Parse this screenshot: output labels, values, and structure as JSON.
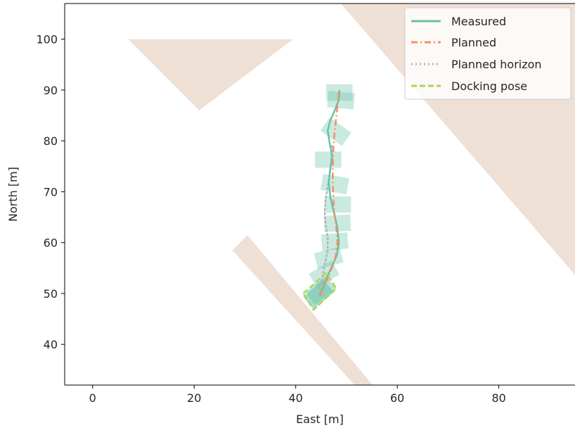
{
  "chart_data": {
    "type": "line",
    "xlabel": "East [m]",
    "ylabel": "North [m]",
    "xlim": [
      -5.5,
      95
    ],
    "ylim": [
      32,
      107
    ],
    "xticks": [
      0,
      20,
      40,
      60,
      80
    ],
    "yticks": [
      40,
      50,
      60,
      70,
      80,
      90,
      100
    ],
    "grid": false,
    "legend_position": "top-right",
    "colors": {
      "obstacle": "#efe0d6",
      "measured": "#66c2a5",
      "planned": "#fc8d62",
      "horizon": "#b3b3b3",
      "docking": "#a6d854",
      "footprint": "#66c2a5"
    },
    "obstacles": [
      {
        "name": "triangle",
        "points": [
          [
            7,
            100
          ],
          [
            39.5,
            100
          ],
          [
            21,
            86
          ]
        ]
      },
      {
        "name": "strip",
        "points": [
          [
            27.5,
            58.5
          ],
          [
            30.5,
            61.5
          ],
          [
            56,
            31
          ],
          [
            52.5,
            31
          ]
        ]
      },
      {
        "name": "diagonal-region",
        "points": [
          [
            48,
            108
          ],
          [
            96,
            108
          ],
          [
            96,
            52.5
          ]
        ]
      }
    ],
    "series": [
      {
        "name": "Measured",
        "style": "solid",
        "x": [
          44.7,
          45.5,
          46.3,
          47.2,
          48.1,
          48.5,
          48.2,
          47.5,
          46.8,
          46.5,
          46.8,
          47.2,
          46.7,
          46.3,
          46.8,
          47.7,
          48.4,
          48.6,
          48.6
        ],
        "y": [
          49.5,
          51.5,
          53.5,
          55.5,
          57.5,
          60.0,
          63.0,
          66.0,
          69.0,
          72.0,
          74.5,
          77.0,
          79.5,
          82.0,
          84.0,
          86.0,
          87.8,
          89.2,
          90.0
        ]
      },
      {
        "name": "Planned",
        "style": "dashdot",
        "x": [
          44.8,
          45.6,
          46.5,
          47.3,
          47.9,
          48.2,
          48.0,
          47.6,
          47.4,
          47.3,
          47.3,
          47.4,
          47.6,
          47.9,
          48.2,
          48.4,
          48.5
        ],
        "y": [
          49.5,
          51.5,
          53.5,
          55.5,
          57.5,
          60.0,
          63.0,
          66.0,
          69.0,
          72.0,
          75.0,
          78.0,
          81.0,
          84.0,
          86.5,
          88.5,
          90.0
        ]
      },
      {
        "name": "Planned horizon",
        "style": "dotted",
        "x": [
          44.5,
          45.2,
          45.8,
          46.3,
          46.3,
          45.9,
          45.7,
          45.9,
          46.3,
          46.7,
          47.0,
          47.1
        ],
        "y": [
          50.0,
          53.0,
          56.0,
          58.5,
          61.0,
          63.5,
          66.0,
          68.5,
          71.0,
          73.5,
          76.0,
          79.0
        ]
      },
      {
        "name": "Docking pose",
        "style": "dashed",
        "polygon": [
          [
            41.5,
            50.0
          ],
          [
            46.0,
            54.0
          ],
          [
            48.0,
            51.0
          ],
          [
            43.5,
            46.8
          ]
        ]
      }
    ],
    "footprints": [
      {
        "cx": 44.5,
        "cy": 49.8,
        "angle": 40,
        "alpha": 0.55
      },
      {
        "cx": 44.9,
        "cy": 50.6,
        "angle": 38,
        "alpha": 0.45
      },
      {
        "cx": 45.6,
        "cy": 53.8,
        "angle": 30,
        "alpha": 0.35
      },
      {
        "cx": 46.5,
        "cy": 57.0,
        "angle": 15,
        "alpha": 0.35
      },
      {
        "cx": 47.7,
        "cy": 60.2,
        "angle": 5,
        "alpha": 0.35
      },
      {
        "cx": 48.2,
        "cy": 63.8,
        "angle": 3,
        "alpha": 0.35
      },
      {
        "cx": 48.3,
        "cy": 67.5,
        "angle": 0,
        "alpha": 0.35
      },
      {
        "cx": 47.7,
        "cy": 71.5,
        "angle": -10,
        "alpha": 0.35
      },
      {
        "cx": 46.4,
        "cy": 76.3,
        "angle": 0,
        "alpha": 0.35
      },
      {
        "cx": 47.9,
        "cy": 81.8,
        "angle": -35,
        "alpha": 0.35
      },
      {
        "cx": 48.9,
        "cy": 88.0,
        "angle": -5,
        "alpha": 0.35
      },
      {
        "cx": 48.6,
        "cy": 89.5,
        "angle": 0,
        "alpha": 0.35
      }
    ]
  }
}
